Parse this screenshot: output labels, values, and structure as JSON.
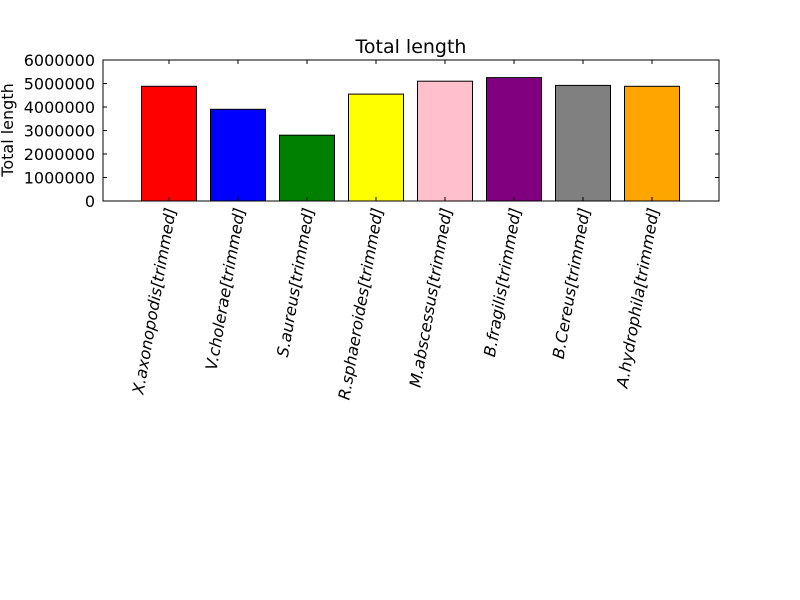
{
  "chart_data": {
    "type": "bar",
    "title": "Total length",
    "xlabel": "",
    "ylabel": "Total length",
    "ylim": [
      0,
      6000000
    ],
    "yticks": [
      0,
      1000000,
      2000000,
      3000000,
      4000000,
      5000000,
      6000000
    ],
    "ytick_labels": [
      "0",
      "1000000",
      "2000000",
      "3000000",
      "4000000",
      "5000000",
      "6000000"
    ],
    "categories": [
      "X.axonopodis[trimmed]",
      "V.cholerae[trimmed]",
      "S.aureus[trimmed]",
      "R.sphaeroides[trimmed]",
      "M.abscessus[trimmed]",
      "B.fragilis[trimmed]",
      "B.Cereus[trimmed]",
      "A.hydrophila[trimmed]"
    ],
    "values": [
      4880000,
      3900000,
      2800000,
      4550000,
      5100000,
      5250000,
      4920000,
      4880000
    ],
    "colors": [
      "#ff0000",
      "#0000ff",
      "#008000",
      "#ffff00",
      "#ffc0cb",
      "#800080",
      "#808080",
      "#ffa500"
    ],
    "grid": false,
    "legend": "none"
  }
}
